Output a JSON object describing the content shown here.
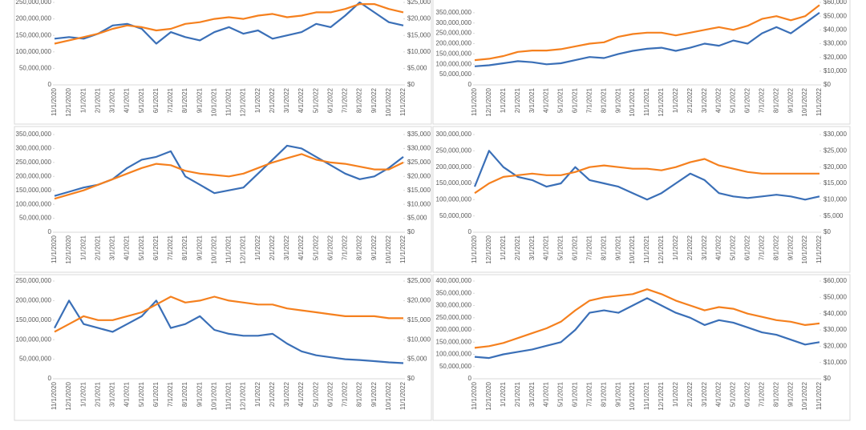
{
  "chart_data": [
    {
      "type": "line",
      "categories": [
        "11/1/2020",
        "12/1/2020",
        "1/1/2021",
        "2/1/2021",
        "3/1/2021",
        "4/1/2021",
        "5/1/2021",
        "6/1/2021",
        "7/1/2021",
        "8/1/2021",
        "9/1/2021",
        "10/1/2021",
        "11/1/2021",
        "12/1/2021",
        "1/1/2022",
        "2/1/2022",
        "3/1/2022",
        "4/1/2022",
        "5/1/2022",
        "6/1/2022",
        "7/1/2022",
        "8/1/2022",
        "9/1/2022",
        "10/1/2022",
        "11/1/2022"
      ],
      "ylim": [
        0,
        250000000
      ],
      "yticks": [
        0,
        {
          "value": 50000000,
          "label": "50,000,000"
        },
        {
          "value": 100000000,
          "label": "100,000,000"
        },
        {
          "value": 150000000,
          "label": "150,000,000"
        },
        {
          "value": 200000000,
          "label": "200,000,000"
        },
        {
          "value": 250000000,
          "label": "250,000,000"
        }
      ],
      "y2lim": [
        0,
        25000
      ],
      "y2ticks": [
        {
          "value": 0,
          "label": "$0"
        },
        {
          "value": 5000,
          "label": "$5,000"
        },
        {
          "value": 10000,
          "label": "$10,000"
        },
        {
          "value": 15000,
          "label": "$15,000"
        },
        {
          "value": 20000,
          "label": "$20,000"
        },
        {
          "value": 25000,
          "label": "$25,000"
        }
      ],
      "series": [
        {
          "color": "#3a6fb7",
          "values": [
            140000000,
            145000000,
            140000000,
            155000000,
            180000000,
            185000000,
            170000000,
            125000000,
            160000000,
            145000000,
            135000000,
            160000000,
            175000000,
            155000000,
            165000000,
            140000000,
            150000000,
            160000000,
            185000000,
            175000000,
            210000000,
            250000000,
            220000000,
            190000000,
            180000000
          ]
        },
        {
          "color": "#f5801e",
          "axis": "y2",
          "values": [
            12500,
            13500,
            14500,
            15500,
            17000,
            18000,
            17500,
            16500,
            17000,
            18500,
            19000,
            20000,
            20500,
            20000,
            21000,
            21500,
            20500,
            21000,
            22000,
            22000,
            23000,
            24500,
            24500,
            23000,
            22000
          ]
        }
      ]
    },
    {
      "type": "line",
      "categories": [
        "11/1/2020",
        "12/1/2020",
        "1/1/2021",
        "2/1/2021",
        "3/1/2021",
        "4/1/2021",
        "5/1/2021",
        "6/1/2021",
        "7/1/2021",
        "8/1/2021",
        "9/1/2021",
        "10/1/2021",
        "11/1/2021",
        "12/1/2021",
        "1/1/2022",
        "2/1/2022",
        "3/1/2022",
        "4/1/2022",
        "5/1/2022",
        "6/1/2022",
        "7/1/2022",
        "8/1/2022",
        "9/1/2022",
        "10/1/2022",
        "11/1/2022"
      ],
      "ylim": [
        0,
        400000000
      ],
      "yticks": [
        0,
        {
          "value": 50000000,
          "label": "50,000,000"
        },
        {
          "value": 100000000,
          "label": "100,000,000"
        },
        {
          "value": 150000000,
          "label": "150,000,000"
        },
        {
          "value": 200000000,
          "label": "200,000,000"
        },
        {
          "value": 250000000,
          "label": "250,000,000"
        },
        {
          "value": 300000000,
          "label": "300,000,000"
        },
        {
          "value": 350000000,
          "label": "350,000,000"
        }
      ],
      "y2lim": [
        0,
        60000
      ],
      "y2ticks": [
        {
          "value": 0,
          "label": "$0"
        },
        {
          "value": 10000,
          "label": "$10,000"
        },
        {
          "value": 20000,
          "label": "$20,000"
        },
        {
          "value": 30000,
          "label": "$30,000"
        },
        {
          "value": 40000,
          "label": "$40,000"
        },
        {
          "value": 50000,
          "label": "$50,000"
        },
        {
          "value": 60000,
          "label": "$60,000"
        }
      ],
      "series": [
        {
          "color": "#3a6fb7",
          "values": [
            90000000,
            95000000,
            105000000,
            115000000,
            110000000,
            100000000,
            105000000,
            120000000,
            135000000,
            130000000,
            150000000,
            165000000,
            175000000,
            180000000,
            165000000,
            180000000,
            200000000,
            190000000,
            215000000,
            200000000,
            250000000,
            280000000,
            250000000,
            300000000,
            350000000
          ]
        },
        {
          "color": "#f5801e",
          "axis": "y2",
          "values": [
            18000,
            19000,
            21000,
            24000,
            25000,
            25000,
            26000,
            28000,
            30000,
            31000,
            35000,
            37000,
            38000,
            38000,
            36000,
            38000,
            40000,
            42000,
            40000,
            43000,
            48000,
            50000,
            47000,
            50000,
            58000
          ]
        }
      ]
    },
    {
      "type": "line",
      "categories": [
        "11/1/2020",
        "12/1/2020",
        "1/1/2021",
        "2/1/2021",
        "3/1/2021",
        "4/1/2021",
        "5/1/2021",
        "6/1/2021",
        "7/1/2021",
        "8/1/2021",
        "9/1/2021",
        "10/1/2021",
        "11/1/2021",
        "12/1/2021",
        "1/1/2022",
        "2/1/2022",
        "3/1/2022",
        "4/1/2022",
        "5/1/2022",
        "6/1/2022",
        "7/1/2022",
        "8/1/2022",
        "9/1/2022",
        "10/1/2022",
        "11/1/2022"
      ],
      "ylim": [
        0,
        350000000
      ],
      "yticks": [
        0,
        {
          "value": 50000000,
          "label": "50,000,000"
        },
        {
          "value": 100000000,
          "label": "100,000,000"
        },
        {
          "value": 150000000,
          "label": "150,000,000"
        },
        {
          "value": 200000000,
          "label": "200,000,000"
        },
        {
          "value": 250000000,
          "label": "250,000,000"
        },
        {
          "value": 300000000,
          "label": "300,000,000"
        },
        {
          "value": 350000000,
          "label": "350,000,000"
        }
      ],
      "y2lim": [
        0,
        35000
      ],
      "y2ticks": [
        {
          "value": 0,
          "label": "$0"
        },
        {
          "value": 5000,
          "label": "$5,000"
        },
        {
          "value": 10000,
          "label": "$10,000"
        },
        {
          "value": 15000,
          "label": "$15,000"
        },
        {
          "value": 20000,
          "label": "$20,000"
        },
        {
          "value": 25000,
          "label": "$25,000"
        },
        {
          "value": 30000,
          "label": "$30,000"
        },
        {
          "value": 35000,
          "label": "$35,000"
        }
      ],
      "series": [
        {
          "color": "#3a6fb7",
          "values": [
            130000000,
            145000000,
            160000000,
            170000000,
            190000000,
            230000000,
            260000000,
            270000000,
            290000000,
            200000000,
            170000000,
            140000000,
            150000000,
            160000000,
            210000000,
            260000000,
            310000000,
            300000000,
            270000000,
            240000000,
            210000000,
            190000000,
            200000000,
            230000000,
            270000000
          ]
        },
        {
          "color": "#f5801e",
          "axis": "y2",
          "values": [
            12000,
            13500,
            15000,
            17000,
            19000,
            21000,
            23000,
            24500,
            24000,
            22000,
            21000,
            20500,
            20000,
            21000,
            23000,
            25000,
            26500,
            28000,
            26000,
            25000,
            24500,
            23500,
            22500,
            22500,
            25000
          ]
        }
      ]
    },
    {
      "type": "line",
      "categories": [
        "11/1/2020",
        "12/1/2020",
        "1/1/2021",
        "2/1/2021",
        "3/1/2021",
        "4/1/2021",
        "5/1/2021",
        "6/1/2021",
        "7/1/2021",
        "8/1/2021",
        "9/1/2021",
        "10/1/2021",
        "11/1/2021",
        "12/1/2021",
        "1/1/2022",
        "2/1/2022",
        "3/1/2022",
        "4/1/2022",
        "5/1/2022",
        "6/1/2022",
        "7/1/2022",
        "8/1/2022",
        "9/1/2022",
        "10/1/2022",
        "11/1/2022"
      ],
      "ylim": [
        0,
        300000000
      ],
      "yticks": [
        0,
        {
          "value": 50000000,
          "label": "50,000,000"
        },
        {
          "value": 100000000,
          "label": "100,000,000"
        },
        {
          "value": 150000000,
          "label": "150,000,000"
        },
        {
          "value": 200000000,
          "label": "200,000,000"
        },
        {
          "value": 250000000,
          "label": "250,000,000"
        },
        {
          "value": 300000000,
          "label": "300,000,000"
        }
      ],
      "y2lim": [
        0,
        30000
      ],
      "y2ticks": [
        {
          "value": 0,
          "label": "$0"
        },
        {
          "value": 5000,
          "label": "$5,000"
        },
        {
          "value": 10000,
          "label": "$10,000"
        },
        {
          "value": 15000,
          "label": "$15,000"
        },
        {
          "value": 20000,
          "label": "$20,000"
        },
        {
          "value": 25000,
          "label": "$25,000"
        },
        {
          "value": 30000,
          "label": "$30,000"
        }
      ],
      "series": [
        {
          "color": "#3a6fb7",
          "values": [
            140000000,
            250000000,
            200000000,
            170000000,
            160000000,
            140000000,
            150000000,
            200000000,
            160000000,
            150000000,
            140000000,
            120000000,
            100000000,
            120000000,
            150000000,
            180000000,
            160000000,
            120000000,
            110000000,
            105000000,
            110000000,
            115000000,
            110000000,
            100000000,
            110000000
          ]
        },
        {
          "color": "#f5801e",
          "axis": "y2",
          "values": [
            12000,
            15000,
            17000,
            17500,
            18000,
            17500,
            17500,
            18500,
            20000,
            20500,
            20000,
            19500,
            19500,
            19000,
            20000,
            21500,
            22500,
            20500,
            19500,
            18500,
            18000,
            18000,
            18000,
            18000,
            18000
          ]
        }
      ]
    },
    {
      "type": "line",
      "categories": [
        "11/1/2020",
        "12/1/2020",
        "1/1/2021",
        "2/1/2021",
        "3/1/2021",
        "4/1/2021",
        "5/1/2021",
        "6/1/2021",
        "7/1/2021",
        "8/1/2021",
        "9/1/2021",
        "10/1/2021",
        "11/1/2021",
        "12/1/2021",
        "1/1/2022",
        "2/1/2022",
        "3/1/2022",
        "4/1/2022",
        "5/1/2022",
        "6/1/2022",
        "7/1/2022",
        "8/1/2022",
        "9/1/2022",
        "10/1/2022",
        "11/1/2022"
      ],
      "ylim": [
        0,
        250000000
      ],
      "yticks": [
        0,
        {
          "value": 50000000,
          "label": "50,000,000"
        },
        {
          "value": 100000000,
          "label": "100,000,000"
        },
        {
          "value": 150000000,
          "label": "150,000,000"
        },
        {
          "value": 200000000,
          "label": "200,000,000"
        },
        {
          "value": 250000000,
          "label": "250,000,000"
        }
      ],
      "y2lim": [
        0,
        25000
      ],
      "y2ticks": [
        {
          "value": 0,
          "label": "$0"
        },
        {
          "value": 5000,
          "label": "$5,000"
        },
        {
          "value": 10000,
          "label": "$10,000"
        },
        {
          "value": 15000,
          "label": "$15,000"
        },
        {
          "value": 20000,
          "label": "$20,000"
        },
        {
          "value": 25000,
          "label": "$25,000"
        }
      ],
      "series": [
        {
          "color": "#3a6fb7",
          "values": [
            130000000,
            200000000,
            140000000,
            130000000,
            120000000,
            140000000,
            160000000,
            200000000,
            130000000,
            140000000,
            160000000,
            125000000,
            115000000,
            110000000,
            110000000,
            115000000,
            90000000,
            70000000,
            60000000,
            55000000,
            50000000,
            48000000,
            45000000,
            42000000,
            40000000
          ]
        },
        {
          "color": "#f5801e",
          "axis": "y2",
          "values": [
            12000,
            14000,
            16000,
            15000,
            15000,
            16000,
            17000,
            19000,
            21000,
            19500,
            20000,
            21000,
            20000,
            19500,
            19000,
            19000,
            18000,
            17500,
            17000,
            16500,
            16000,
            16000,
            16000,
            15500,
            15500
          ]
        }
      ]
    },
    {
      "type": "line",
      "categories": [
        "11/1/2020",
        "12/1/2020",
        "1/1/2021",
        "2/1/2021",
        "3/1/2021",
        "4/1/2021",
        "5/1/2021",
        "6/1/2021",
        "7/1/2021",
        "8/1/2021",
        "9/1/2021",
        "10/1/2021",
        "11/1/2021",
        "12/1/2021",
        "1/1/2022",
        "2/1/2022",
        "3/1/2022",
        "4/1/2022",
        "5/1/2022",
        "6/1/2022",
        "7/1/2022",
        "8/1/2022",
        "9/1/2022",
        "10/1/2022",
        "11/1/2022"
      ],
      "ylim": [
        0,
        400000000
      ],
      "yticks": [
        0,
        {
          "value": 50000000,
          "label": "50,000,000"
        },
        {
          "value": 100000000,
          "label": "100,000,000"
        },
        {
          "value": 150000000,
          "label": "150,000,000"
        },
        {
          "value": 200000000,
          "label": "200,000,000"
        },
        {
          "value": 250000000,
          "label": "250,000,000"
        },
        {
          "value": 300000000,
          "label": "300,000,000"
        },
        {
          "value": 350000000,
          "label": "350,000,000"
        },
        {
          "value": 400000000,
          "label": "400,000,000"
        }
      ],
      "y2lim": [
        0,
        60000
      ],
      "y2ticks": [
        {
          "value": 0,
          "label": "$0"
        },
        {
          "value": 10000,
          "label": "$10,000"
        },
        {
          "value": 20000,
          "label": "$20,000"
        },
        {
          "value": 30000,
          "label": "$30,000"
        },
        {
          "value": 40000,
          "label": "$40,000"
        },
        {
          "value": 50000,
          "label": "$50,000"
        },
        {
          "value": 60000,
          "label": "$60,000"
        }
      ],
      "series": [
        {
          "color": "#3a6fb7",
          "values": [
            90000000,
            85000000,
            100000000,
            110000000,
            120000000,
            135000000,
            150000000,
            200000000,
            270000000,
            280000000,
            270000000,
            300000000,
            330000000,
            300000000,
            270000000,
            250000000,
            220000000,
            240000000,
            230000000,
            210000000,
            190000000,
            180000000,
            160000000,
            140000000,
            150000000
          ]
        },
        {
          "color": "#f5801e",
          "axis": "y2",
          "values": [
            19000,
            20000,
            22000,
            25000,
            28000,
            31000,
            35000,
            42000,
            48000,
            50000,
            51000,
            52000,
            55000,
            52000,
            48000,
            45000,
            42000,
            44000,
            43000,
            40000,
            38000,
            36000,
            35000,
            33000,
            34000
          ]
        }
      ]
    }
  ]
}
